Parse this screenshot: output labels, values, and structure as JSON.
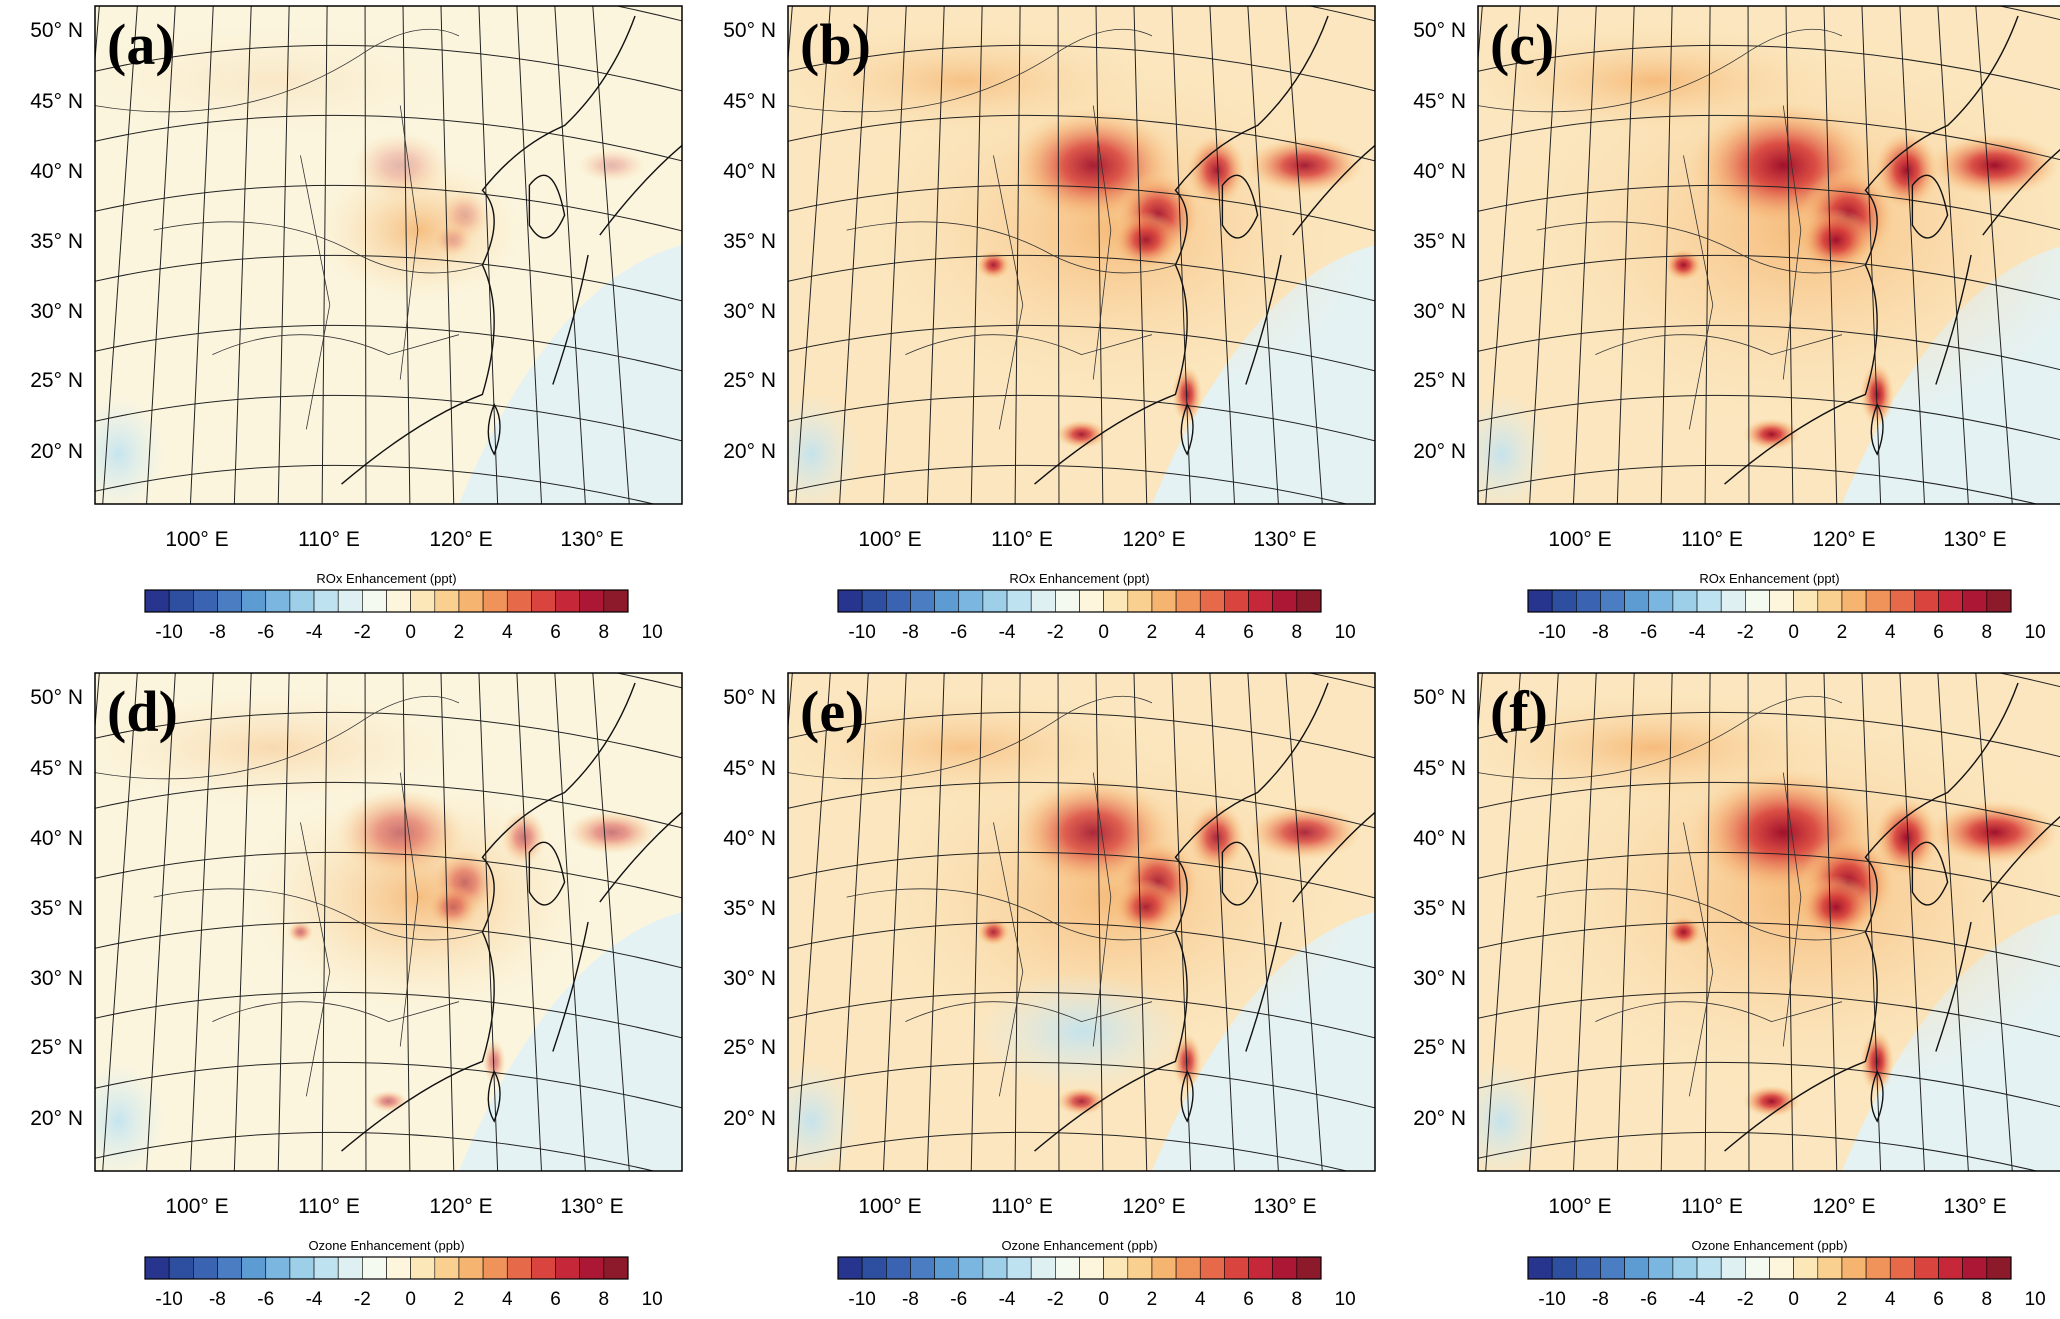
{
  "panels": [
    {
      "label": "(a)",
      "colorbar_title": "ROx Enhancement  (ppt)",
      "intensity": 0.25
    },
    {
      "label": "(b)",
      "colorbar_title": "ROx Enhancement  (ppt)",
      "intensity": 0.85
    },
    {
      "label": "(c)",
      "colorbar_title": "ROx Enhancement  (ppt)",
      "intensity": 1.0
    },
    {
      "label": "(d)",
      "colorbar_title": "Ozone Enhancement  (ppb)",
      "intensity": 0.5
    },
    {
      "label": "(e)",
      "colorbar_title": "Ozone Enhancement  (ppb)",
      "intensity": 0.8
    },
    {
      "label": "(f)",
      "colorbar_title": "Ozone Enhancement  (ppb)",
      "intensity": 1.0
    }
  ],
  "lat_labels": [
    "50° N",
    "45° N",
    "40° N",
    "35° N",
    "30° N",
    "25° N",
    "20° N"
  ],
  "lon_labels": [
    "100° E",
    "110° E",
    "120° E",
    "130° E"
  ],
  "colorbar": {
    "ticks": [
      "-10",
      "-8",
      "-6",
      "-4",
      "-2",
      "0",
      "2",
      "4",
      "6",
      "8",
      "10"
    ],
    "colors": [
      "#27358f",
      "#2e4ea0",
      "#3a64b2",
      "#4a7dc2",
      "#5d9bd3",
      "#7bb6e0",
      "#9dcfe9",
      "#bfe2f0",
      "#dff0f3",
      "#f5faf0",
      "#fdf6dd",
      "#fce7b8",
      "#f9d08f",
      "#f5b470",
      "#f0935a",
      "#e66a4a",
      "#d9443e",
      "#c6283a",
      "#ab1734",
      "#8c1a2b"
    ]
  }
}
